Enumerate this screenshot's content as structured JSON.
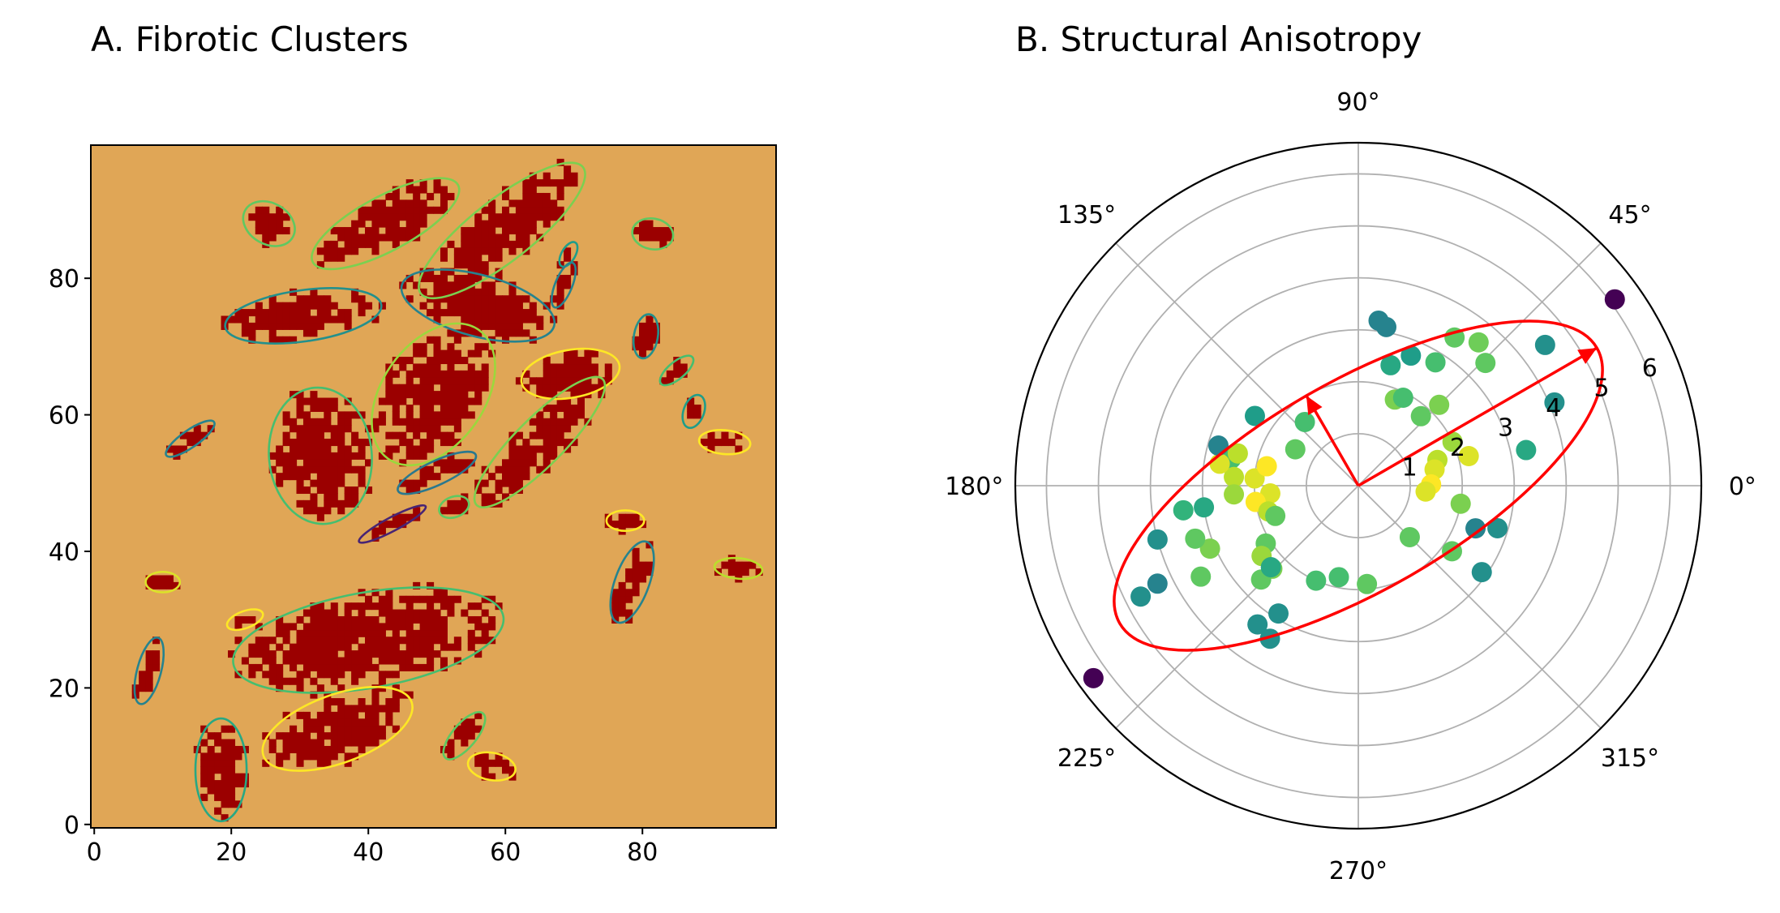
{
  "chart_data": [
    {
      "panel": "A",
      "type": "heatmap",
      "title": "A. Fibrotic Clusters",
      "xlabel": "",
      "ylabel": "",
      "xlim": [
        -0.5,
        99.5
      ],
      "ylim": [
        -0.5,
        99.5
      ],
      "xticks": [
        0,
        20,
        40,
        60,
        80
      ],
      "yticks": [
        0,
        20,
        40,
        60,
        80
      ],
      "colors": {
        "background": "#e0a656",
        "fibrosis": "#9b0000",
        "frame": "#000000"
      },
      "colormap": "viridis",
      "clusters": [
        {
          "cx": 25.5,
          "cy": 88,
          "w": 6,
          "h": 8,
          "angle": 60,
          "cval": 0.75
        },
        {
          "cx": 42.5,
          "cy": 88,
          "w": 24,
          "h": 8,
          "angle": 28,
          "cval": 0.8
        },
        {
          "cx": 59.5,
          "cy": 87,
          "w": 30,
          "h": 9,
          "angle": 38,
          "cval": 0.8
        },
        {
          "cx": 81.5,
          "cy": 86.5,
          "w": 6,
          "h": 4.5,
          "angle": -10,
          "cval": 0.75
        },
        {
          "cx": 69.2,
          "cy": 83.5,
          "w": 4,
          "h": 2,
          "angle": 60,
          "cval": 0.55
        },
        {
          "cx": 68.5,
          "cy": 79,
          "w": 7,
          "h": 2.5,
          "angle": 68,
          "cval": 0.45
        },
        {
          "cx": 30.5,
          "cy": 74.5,
          "w": 23,
          "h": 7.5,
          "angle": 8,
          "cval": 0.5
        },
        {
          "cx": 56,
          "cy": 76,
          "w": 23,
          "h": 9,
          "angle": -15,
          "cval": 0.45
        },
        {
          "cx": 80.5,
          "cy": 71.5,
          "w": 6.5,
          "h": 3.5,
          "angle": 80,
          "cval": 0.5
        },
        {
          "cx": 49.5,
          "cy": 63,
          "w": 23,
          "h": 15,
          "angle": 55,
          "cval": 0.85
        },
        {
          "cx": 69.5,
          "cy": 66,
          "w": 14.5,
          "h": 7,
          "angle": 10,
          "cval": 1.0
        },
        {
          "cx": 85,
          "cy": 66.5,
          "w": 6,
          "h": 2.5,
          "angle": 40,
          "cval": 0.7
        },
        {
          "cx": 65,
          "cy": 56,
          "w": 26,
          "h": 7,
          "angle": 45,
          "cval": 0.8
        },
        {
          "cx": 87.5,
          "cy": 60.5,
          "w": 5,
          "h": 3,
          "angle": 70,
          "cval": 0.55
        },
        {
          "cx": 14,
          "cy": 56.5,
          "w": 8.5,
          "h": 2.5,
          "angle": 35,
          "cval": 0.45
        },
        {
          "cx": 33,
          "cy": 54,
          "w": 15,
          "h": 20,
          "angle": 5,
          "cval": 0.7
        },
        {
          "cx": 92,
          "cy": 56,
          "w": 7.5,
          "h": 3.5,
          "angle": -5,
          "cval": 1.0
        },
        {
          "cx": 50,
          "cy": 51.5,
          "w": 12.5,
          "h": 3.5,
          "angle": 25,
          "cval": 0.4
        },
        {
          "cx": 52.5,
          "cy": 46.5,
          "w": 4.5,
          "h": 3,
          "angle": 20,
          "cval": 0.75
        },
        {
          "cx": 43.5,
          "cy": 44,
          "w": 11,
          "h": 2,
          "angle": 28,
          "cval": 0.1
        },
        {
          "cx": 77.5,
          "cy": 44.5,
          "w": 5.5,
          "h": 3,
          "angle": 0,
          "cval": 1.0
        },
        {
          "cx": 78.5,
          "cy": 35.5,
          "w": 12.5,
          "h": 5,
          "angle": 70,
          "cval": 0.45
        },
        {
          "cx": 94,
          "cy": 37.5,
          "w": 7,
          "h": 3,
          "angle": -5,
          "cval": 0.9
        },
        {
          "cx": 10,
          "cy": 35.5,
          "w": 5,
          "h": 3,
          "angle": 0,
          "cval": 0.95
        },
        {
          "cx": 22,
          "cy": 30,
          "w": 5.5,
          "h": 2.5,
          "angle": 20,
          "cval": 1.0
        },
        {
          "cx": 40,
          "cy": 27,
          "w": 40,
          "h": 14,
          "angle": 10,
          "cval": 0.7
        },
        {
          "cx": 8,
          "cy": 22.5,
          "w": 10,
          "h": 3.5,
          "angle": 75,
          "cval": 0.45
        },
        {
          "cx": 35.5,
          "cy": 14,
          "w": 23,
          "h": 10,
          "angle": 20,
          "cval": 1.0
        },
        {
          "cx": 54,
          "cy": 13,
          "w": 8.5,
          "h": 3.5,
          "angle": 50,
          "cval": 0.75
        },
        {
          "cx": 18.5,
          "cy": 8,
          "w": 15,
          "h": 7.5,
          "angle": 90,
          "cval": 0.6
        },
        {
          "cx": 58,
          "cy": 8.5,
          "w": 7,
          "h": 4,
          "angle": -10,
          "cval": 1.0
        }
      ]
    },
    {
      "panel": "B",
      "type": "scatter",
      "subtype": "polar",
      "title": "B. Structural Anisotropy",
      "theta_ticks": [
        "0°",
        "45°",
        "90°",
        "135°",
        "180°",
        "225°",
        "270°",
        "315°"
      ],
      "r_ticks": [
        "1",
        "2",
        "3",
        "4",
        "5",
        "6"
      ],
      "rlim": [
        0,
        6.6
      ],
      "grid": true,
      "colormap": "viridis",
      "ellipse": {
        "color": "#ff0000",
        "center_r": 0,
        "angle_deg": 30,
        "semi_major": 5.3,
        "semi_minor": 2.0
      },
      "arrows": [
        {
          "theta_deg": 30,
          "r": 5.3,
          "color": "#ff0000"
        },
        {
          "theta_deg": 120,
          "r": 2.0,
          "color": "#ff0000"
        }
      ],
      "points": [
        {
          "r": 6.1,
          "theta_deg": 36,
          "cval": 0.0
        },
        {
          "r": 6.3,
          "theta_deg": 216,
          "cval": 0.0
        },
        {
          "r": 3.2,
          "theta_deg": 83,
          "cval": 0.45
        },
        {
          "r": 3.1,
          "theta_deg": 80,
          "cval": 0.45
        },
        {
          "r": 4.5,
          "theta_deg": 37,
          "cval": 0.5
        },
        {
          "r": 4.1,
          "theta_deg": 23,
          "cval": 0.5
        },
        {
          "r": 3.4,
          "theta_deg": 57,
          "cval": 0.75
        },
        {
          "r": 3.6,
          "theta_deg": 50,
          "cval": 0.78
        },
        {
          "r": 3.4,
          "theta_deg": 44,
          "cval": 0.75
        },
        {
          "r": 3.3,
          "theta_deg": 12,
          "cval": 0.6
        },
        {
          "r": 2.8,
          "theta_deg": 58,
          "cval": 0.7
        },
        {
          "r": 2.7,
          "theta_deg": 68,
          "cval": 0.55
        },
        {
          "r": 2.4,
          "theta_deg": 75,
          "cval": 0.6
        },
        {
          "r": 2.2,
          "theta_deg": 45,
          "cval": 0.8
        },
        {
          "r": 2.0,
          "theta_deg": 25,
          "cval": 0.85
        },
        {
          "r": 2.2,
          "theta_deg": 15,
          "cval": 0.95
        },
        {
          "r": 1.6,
          "theta_deg": 18,
          "cval": 0.9
        },
        {
          "r": 1.5,
          "theta_deg": 12,
          "cval": 0.95
        },
        {
          "r": 1.4,
          "theta_deg": 1,
          "cval": 1.0
        },
        {
          "r": 1.3,
          "theta_deg": -5,
          "cval": 0.95
        },
        {
          "r": 2.8,
          "theta_deg": -17,
          "cval": 0.5
        },
        {
          "r": 1.4,
          "theta_deg": -45,
          "cval": 0.75
        },
        {
          "r": 1.8,
          "theta_deg": 67,
          "cval": 0.8
        },
        {
          "r": 1.8,
          "theta_deg": 48,
          "cval": 0.75
        },
        {
          "r": 2.0,
          "theta_deg": -10,
          "cval": 0.8
        },
        {
          "r": 2.4,
          "theta_deg": 146,
          "cval": 0.55
        },
        {
          "r": 1.4,
          "theta_deg": 150,
          "cval": 0.75
        },
        {
          "r": 1.6,
          "theta_deg": 130,
          "cval": 0.7
        },
        {
          "r": 2.5,
          "theta_deg": 168,
          "cval": 0.7
        },
        {
          "r": 2.4,
          "theta_deg": 176,
          "cval": 0.9
        },
        {
          "r": 2.0,
          "theta_deg": 176,
          "cval": 0.95
        },
        {
          "r": 1.8,
          "theta_deg": 168,
          "cval": 1.0
        },
        {
          "r": 1.7,
          "theta_deg": 185,
          "cval": 0.95
        },
        {
          "r": 2.0,
          "theta_deg": 189,
          "cval": 1.0
        },
        {
          "r": 2.4,
          "theta_deg": 184,
          "cval": 0.85
        },
        {
          "r": 2.7,
          "theta_deg": 171,
          "cval": 0.95
        },
        {
          "r": 2.4,
          "theta_deg": 165,
          "cval": 0.9
        },
        {
          "r": 1.8,
          "theta_deg": 196,
          "cval": 0.9
        },
        {
          "r": 1.7,
          "theta_deg": 200,
          "cval": 0.75
        },
        {
          "r": 2.1,
          "theta_deg": 212,
          "cval": 0.75
        },
        {
          "r": 2.3,
          "theta_deg": 224,
          "cval": 0.8
        },
        {
          "r": 2.3,
          "theta_deg": 216,
          "cval": 0.85
        },
        {
          "r": 2.6,
          "theta_deg": 224,
          "cval": 0.75
        },
        {
          "r": 3.1,
          "theta_deg": 203,
          "cval": 0.8
        },
        {
          "r": 3.3,
          "theta_deg": 198,
          "cval": 0.75
        },
        {
          "r": 3.0,
          "theta_deg": 188,
          "cval": 0.6
        },
        {
          "r": 3.4,
          "theta_deg": 188,
          "cval": 0.65
        },
        {
          "r": 3.5,
          "theta_deg": 210,
          "cval": 0.75
        },
        {
          "r": 3.3,
          "theta_deg": 234,
          "cval": 0.5
        },
        {
          "r": 3.4,
          "theta_deg": 240,
          "cval": 0.5
        },
        {
          "r": 2.9,
          "theta_deg": 238,
          "cval": 0.5
        },
        {
          "r": 2.0,
          "theta_deg": 246,
          "cval": 0.7
        },
        {
          "r": 1.8,
          "theta_deg": 258,
          "cval": 0.7
        },
        {
          "r": 1.9,
          "theta_deg": 275,
          "cval": 0.75
        },
        {
          "r": 2.3,
          "theta_deg": 223,
          "cval": 0.6
        },
        {
          "r": 4.0,
          "theta_deg": 195,
          "cval": 0.5
        },
        {
          "r": 4.3,
          "theta_deg": 206,
          "cval": 0.45
        },
        {
          "r": 4.7,
          "theta_deg": 207,
          "cval": 0.5
        },
        {
          "r": 2.8,
          "theta_deg": 164,
          "cval": 0.45
        },
        {
          "r": 2.4,
          "theta_deg": -20,
          "cval": 0.45
        },
        {
          "r": 2.2,
          "theta_deg": -35,
          "cval": 0.75
        },
        {
          "r": 2.9,
          "theta_deg": -35,
          "cval": 0.5
        },
        {
          "r": 1.9,
          "theta_deg": 63,
          "cval": 0.7
        }
      ]
    }
  ]
}
